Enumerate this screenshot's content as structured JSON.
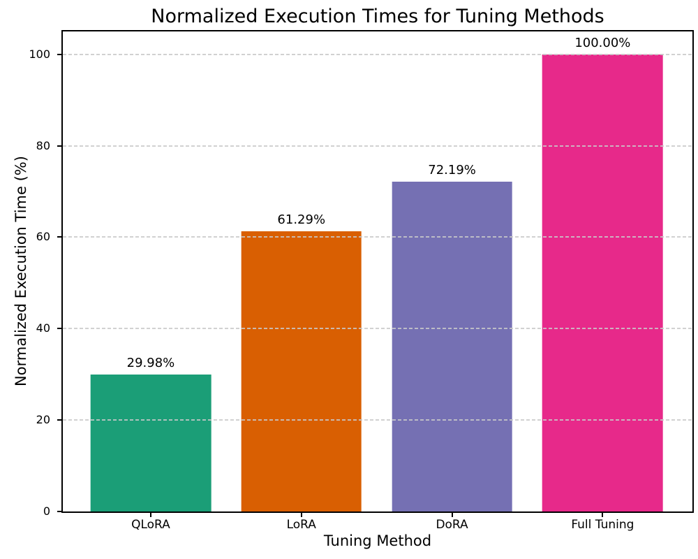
{
  "chart_data": {
    "type": "bar",
    "title": "Normalized Execution Times for Tuning Methods",
    "xlabel": "Tuning Method",
    "ylabel": "Normalized Execution Time (%)",
    "categories": [
      "QLoRA",
      "LoRA",
      "DoRA",
      "Full Tuning"
    ],
    "values": [
      29.98,
      61.29,
      72.19,
      100.0
    ],
    "bar_labels": [
      "29.98%",
      "61.29%",
      "72.19%",
      "100.00%"
    ],
    "bar_colors": [
      "#1b9e77",
      "#d95f02",
      "#7570b3",
      "#e7298a"
    ],
    "yticks": [
      0,
      20,
      40,
      60,
      80,
      100
    ],
    "ytick_labels": [
      "0",
      "20",
      "40",
      "60",
      "80",
      "100"
    ],
    "ylim": [
      0,
      105
    ],
    "bar_width_fraction": 0.8,
    "grid": {
      "axis": "y",
      "style": "dashed",
      "color": "#c9c9c9",
      "drawn_over_bars": true
    },
    "legend": null
  },
  "style": {
    "background": "#ffffff",
    "spine_color": "#000000",
    "text_color": "#000000"
  }
}
